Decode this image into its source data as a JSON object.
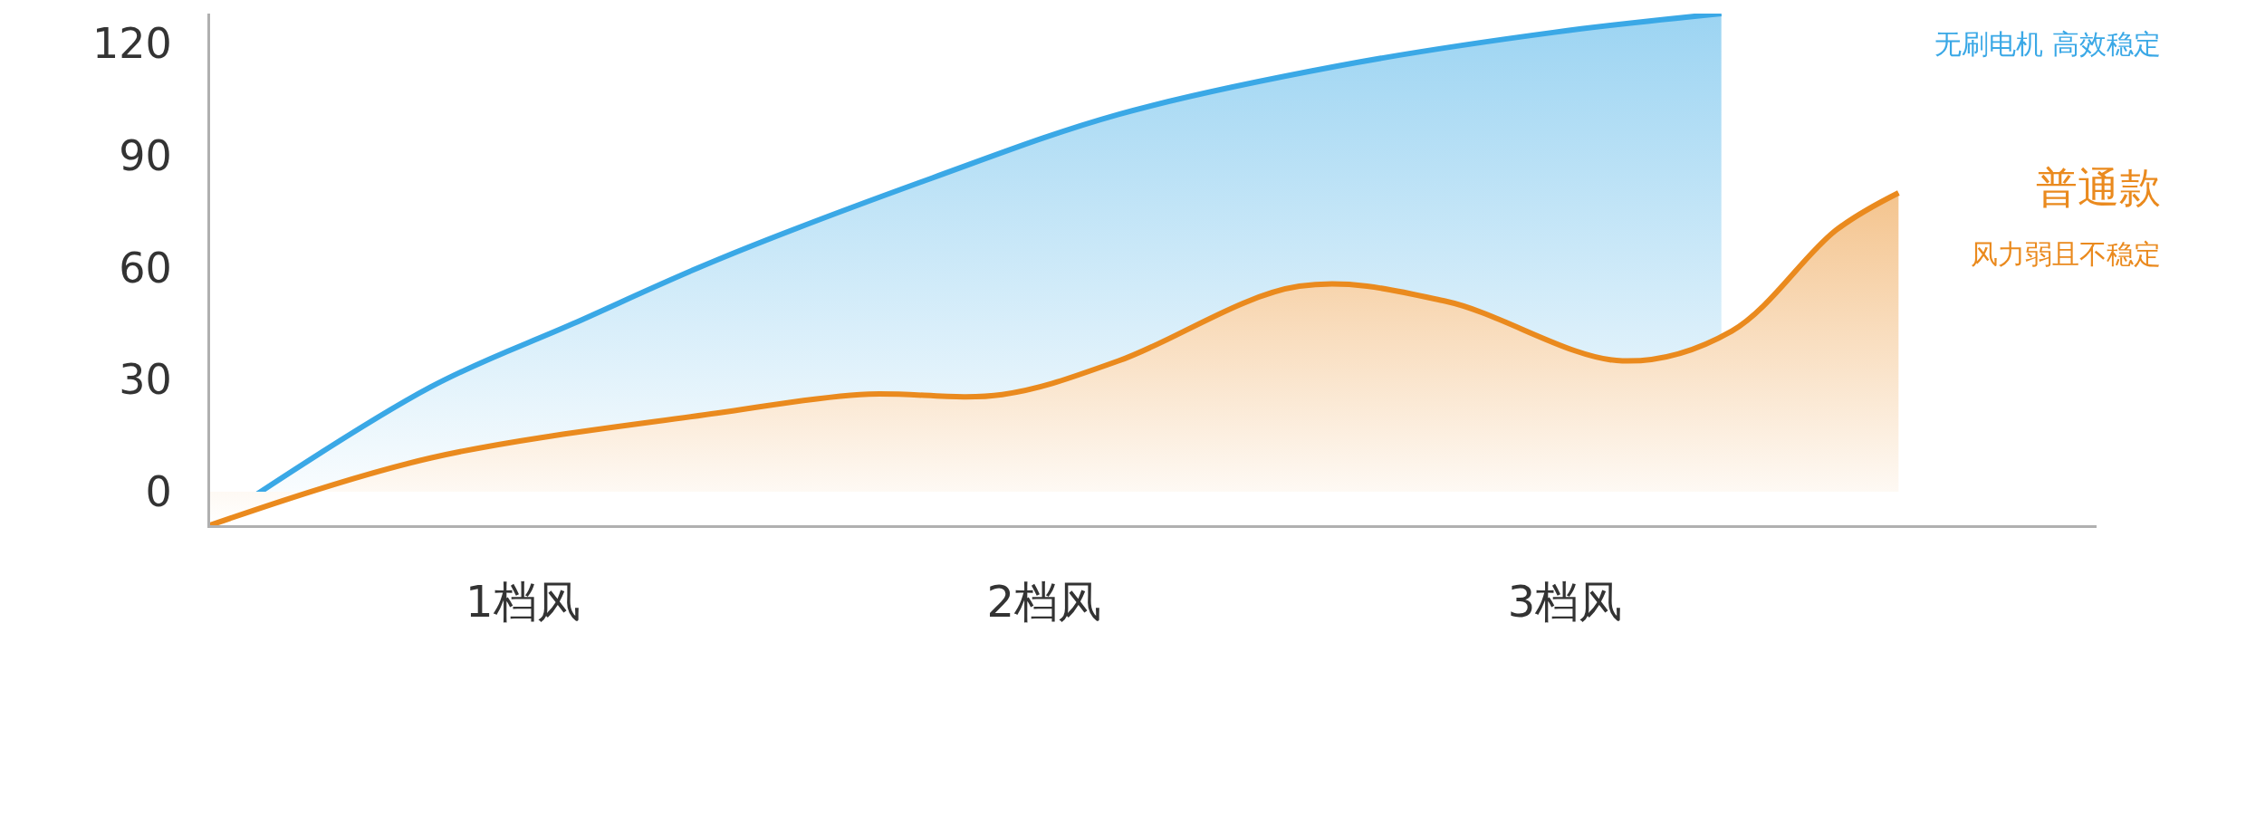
{
  "chart_data": {
    "type": "area",
    "xlim": [
      0.4,
      4.02
    ],
    "ylim": [
      -9,
      128
    ],
    "xticks": [
      {
        "value": 1,
        "label": "1档风"
      },
      {
        "value": 2,
        "label": "2档风"
      },
      {
        "value": 3,
        "label": "3档风"
      }
    ],
    "yticks": [
      0,
      30,
      60,
      90,
      120
    ],
    "legend": false,
    "series": [
      {
        "color": "#3aa8e6",
        "x": [
          0.4,
          0.823,
          1.097,
          1.372,
          1.786,
          2.143,
          2.565,
          2.98,
          3.3
        ],
        "values": [
          -9,
          28,
          45,
          62,
          84,
          101,
          114,
          123,
          128
        ]
      },
      {
        "name": "普通款",
        "color": "#ea8a1e",
        "x": [
          0.4,
          0.823,
          1.372,
          1.647,
          1.92,
          2.143,
          2.49,
          2.77,
          3.11,
          3.32,
          3.52,
          3.64
        ],
        "values": [
          -9,
          9,
          21,
          26,
          26,
          35,
          55,
          51,
          35,
          43,
          70,
          80
        ]
      }
    ],
    "annotations": [
      "无刷电机 高效稳定",
      "风力弱且不稳定"
    ]
  }
}
